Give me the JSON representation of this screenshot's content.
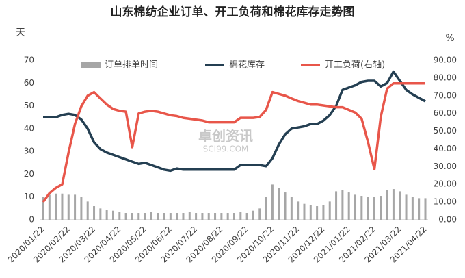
{
  "chart_data": {
    "type": "bar",
    "title": "山东棉纺企业订单、开工负荷和棉花库存走势图",
    "y_label": "天",
    "y2_label": "%",
    "watermark": [
      "卓创资讯",
      "SCI99.COM"
    ],
    "categories": [
      "2020/01/22",
      null,
      null,
      null,
      "2020/02/22",
      null,
      null,
      null,
      "2020/03/22",
      null,
      null,
      null,
      "2020/04/22",
      null,
      null,
      null,
      "2020/05/22",
      null,
      null,
      null,
      "2020/06/22",
      null,
      null,
      null,
      "2020/07/22",
      null,
      null,
      null,
      "2020/08/22",
      null,
      null,
      null,
      "2020/09/22",
      null,
      null,
      null,
      "2020/10/22",
      null,
      null,
      null,
      "2020/11/22",
      null,
      null,
      null,
      "2020/12/22",
      null,
      null,
      null,
      "2021/01/22",
      null,
      null,
      null,
      "2021/02/22",
      null,
      null,
      null,
      "2021/03/22",
      null,
      null,
      null,
      "2021/04/22"
    ],
    "series": [
      {
        "name": "订单排单时间",
        "type": "bar",
        "color": "#a6a6a6",
        "values": [
          10,
          11,
          11.5,
          11.5,
          11,
          11,
          10,
          8,
          6,
          5,
          4.5,
          4,
          3.5,
          3,
          3,
          3,
          3,
          3.5,
          3,
          3,
          3,
          3,
          3,
          3.5,
          3,
          3,
          3,
          3,
          3,
          3,
          3,
          3.5,
          3,
          4,
          5,
          10,
          15.5,
          14,
          12,
          10,
          8,
          7,
          6.5,
          6,
          6.5,
          8,
          12.5,
          13,
          12,
          11,
          10.5,
          10,
          10,
          10.5,
          13,
          13.5,
          12.5,
          11,
          10,
          9.5,
          9.5
        ]
      },
      {
        "name": "棉花库存",
        "type": "line",
        "color": "#243f52",
        "values": [
          45,
          45,
          45,
          46,
          46.5,
          46,
          44,
          40,
          34,
          31,
          29.5,
          28.5,
          27.5,
          26.5,
          25.5,
          24.5,
          25,
          24,
          23,
          22,
          21.5,
          22.5,
          22,
          22,
          22,
          22,
          22,
          22,
          22,
          22,
          22,
          24,
          24,
          24,
          24,
          23.5,
          27,
          33,
          37.5,
          40,
          40.5,
          41,
          42,
          42,
          43.5,
          46,
          50,
          57,
          58,
          59,
          60.5,
          61,
          61,
          58.5,
          60,
          65,
          61,
          57,
          55,
          53.5,
          52
        ]
      },
      {
        "name": "开工负荷(右轴)",
        "type": "line",
        "axis": "y2",
        "color": "#e8564a",
        "values": [
          10,
          15,
          18,
          20,
          38,
          54,
          64,
          70,
          72,
          68.5,
          65,
          62.5,
          61.5,
          61,
          41,
          60,
          61,
          61.5,
          61,
          60,
          59,
          58.5,
          57.5,
          57,
          56.5,
          56,
          55,
          55,
          55,
          55,
          55,
          57.5,
          57.5,
          57.5,
          58,
          62,
          72,
          71,
          70,
          68.5,
          67,
          66,
          65,
          65,
          64.5,
          64,
          63.5,
          63.5,
          62,
          60.5,
          57,
          44,
          28.5,
          58,
          74,
          77,
          77,
          77,
          77,
          77,
          77
        ]
      }
    ],
    "ylim": [
      0,
      70
    ],
    "yticks": [
      0,
      10,
      20,
      30,
      40,
      50,
      60,
      70
    ],
    "y2lim": [
      0,
      90
    ],
    "y2ticks": [
      {
        "value": 0,
        "label": "0.00"
      },
      {
        "value": 10,
        "label": "10.00"
      },
      {
        "value": 20,
        "label": "20.00"
      },
      {
        "value": 30,
        "label": "30.00"
      },
      {
        "value": 40,
        "label": "40.00"
      },
      {
        "value": 50,
        "label": "50.00"
      },
      {
        "value": 60,
        "label": "60.00"
      },
      {
        "value": 70,
        "label": "70.00"
      },
      {
        "value": 80,
        "label": "80.00"
      },
      {
        "value": 90,
        "label": "90.00"
      }
    ],
    "legend": "top"
  }
}
